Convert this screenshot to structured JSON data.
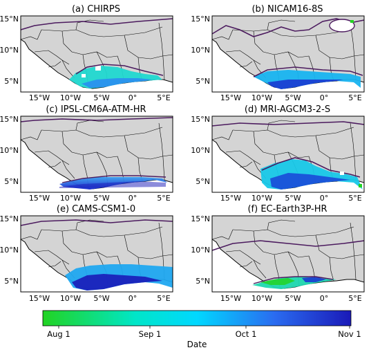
{
  "figure": {
    "panels": [
      {
        "title": "(a) CHIRPS"
      },
      {
        "title": "(b) NICAM16-8S"
      },
      {
        "title": "(c) IPSL-CM6A-ATM-HR"
      },
      {
        "title": "(d) MRI-AGCM3-2-S"
      },
      {
        "title": "(e) CAMS-CSM1-0"
      },
      {
        "title": "(f) EC-Earth3P-HR"
      }
    ],
    "y_ticks": [
      "15°N",
      "10°N",
      "5°N"
    ],
    "x_ticks": [
      "15°W",
      "10°W",
      "5°W",
      "0°",
      "5°E"
    ],
    "colorbar": {
      "ticks": [
        "Aug 1",
        "Sep 1",
        "Oct 1",
        "Nov 1"
      ],
      "label": "Date",
      "colors": [
        "#22d322",
        "#00e6c8",
        "#00c8ff",
        "#2a6cf0",
        "#1a1ab8"
      ]
    },
    "colors": {
      "land": "#d4d4d4",
      "boundary": "#000000",
      "contour": "#4b1a5e"
    }
  }
}
